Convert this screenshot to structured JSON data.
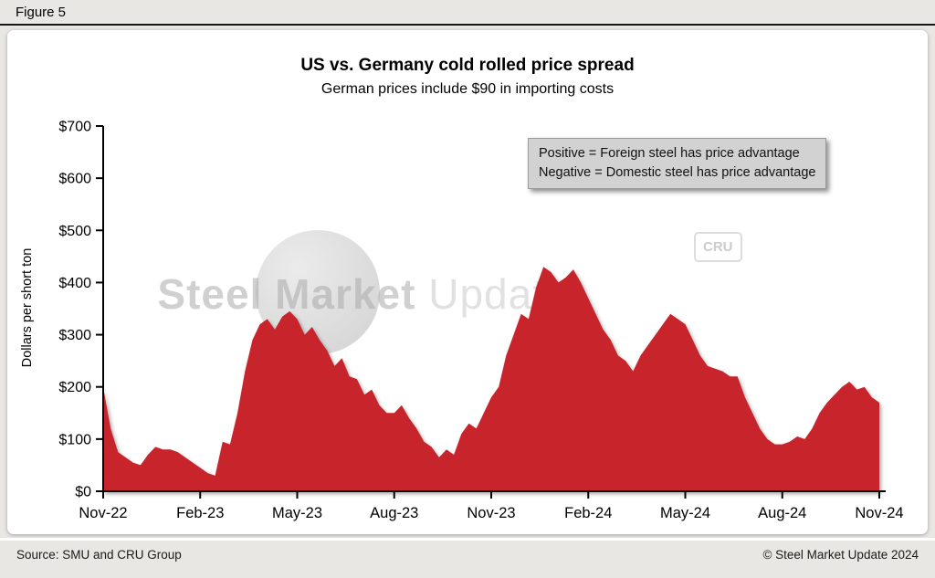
{
  "figure_label": "Figure 5",
  "annotation": {
    "line1": "Positive = Foreign steel has price advantage",
    "line2": "Negative = Domestic steel has price advantage"
  },
  "watermark": {
    "bold": "Steel Market",
    "light": "Update",
    "cru": "CRU"
  },
  "footer": {
    "source": "Source: SMU and CRU Group",
    "copyright": "© Steel Market Update 2024"
  },
  "chart_data": {
    "type": "area",
    "title": "US vs. Germany cold rolled price spread",
    "subtitle": "German prices include $90 in importing costs",
    "xlabel": "",
    "ylabel": "Dollars per short ton",
    "ylim": [
      0,
      700
    ],
    "grid": false,
    "frequency": "weekly",
    "x_range": [
      "Nov-22",
      "Nov-24"
    ],
    "area_color": "#c8242b",
    "y_ticks": [
      {
        "value": 0,
        "label": "$0"
      },
      {
        "value": 100,
        "label": "$100"
      },
      {
        "value": 200,
        "label": "$200"
      },
      {
        "value": 300,
        "label": "$300"
      },
      {
        "value": 400,
        "label": "$400"
      },
      {
        "value": 500,
        "label": "$500"
      },
      {
        "value": 600,
        "label": "$600"
      },
      {
        "value": 700,
        "label": "$700"
      }
    ],
    "x_ticks": [
      {
        "index": 0,
        "label": "Nov-22"
      },
      {
        "index": 13,
        "label": "Feb-23"
      },
      {
        "index": 26,
        "label": "May-23"
      },
      {
        "index": 39,
        "label": "Aug-23"
      },
      {
        "index": 52,
        "label": "Nov-23"
      },
      {
        "index": 65,
        "label": "Feb-24"
      },
      {
        "index": 78,
        "label": "May-24"
      },
      {
        "index": 91,
        "label": "Aug-24"
      },
      {
        "index": 104,
        "label": "Nov-24"
      }
    ],
    "values": [
      200,
      120,
      75,
      65,
      55,
      50,
      70,
      85,
      80,
      80,
      75,
      65,
      55,
      45,
      35,
      30,
      95,
      90,
      150,
      230,
      290,
      320,
      330,
      310,
      335,
      345,
      330,
      300,
      315,
      290,
      270,
      240,
      255,
      220,
      215,
      185,
      195,
      165,
      150,
      150,
      165,
      140,
      120,
      95,
      85,
      65,
      80,
      70,
      110,
      130,
      120,
      150,
      180,
      200,
      260,
      300,
      340,
      330,
      390,
      430,
      420,
      400,
      410,
      425,
      400,
      370,
      340,
      310,
      290,
      260,
      250,
      230,
      260,
      280,
      300,
      320,
      340,
      330,
      320,
      290,
      260,
      240,
      235,
      230,
      220,
      220,
      180,
      150,
      120,
      100,
      90,
      90,
      95,
      105,
      100,
      120,
      150,
      170,
      185,
      200,
      210,
      195,
      200,
      180,
      170
    ]
  }
}
